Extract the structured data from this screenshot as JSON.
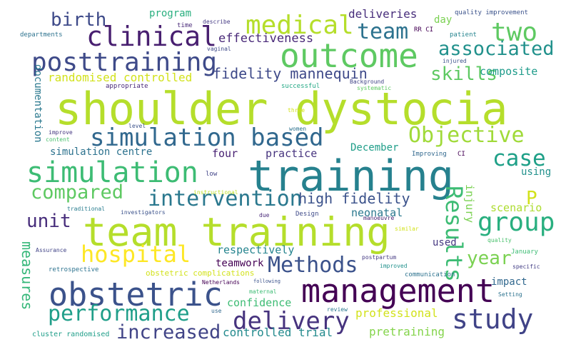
{
  "words": [
    {
      "text": "shoulder dystocia",
      "color": "#b5de2b"
    },
    {
      "text": "training",
      "color": "#26818e"
    },
    {
      "text": "team training",
      "color": "#b5de2b"
    },
    {
      "text": "outcome",
      "color": "#5ec962"
    },
    {
      "text": "management",
      "color": "#440154"
    },
    {
      "text": "obstetric",
      "color": "#3b528b"
    },
    {
      "text": "simulation",
      "color": "#3dbc74"
    },
    {
      "text": "clinical",
      "color": "#481f70"
    },
    {
      "text": "medical",
      "color": "#b5de2b"
    },
    {
      "text": "posttraining",
      "color": "#3e4a89"
    },
    {
      "text": "simulation based",
      "color": "#31688e"
    },
    {
      "text": "intervention",
      "color": "#2a788e"
    },
    {
      "text": "performance",
      "color": "#1f9e89"
    },
    {
      "text": "delivery",
      "color": "#46337e"
    },
    {
      "text": "study",
      "color": "#404387"
    },
    {
      "text": "hospital",
      "color": "#fde725"
    },
    {
      "text": "Methods",
      "color": "#3b528b"
    },
    {
      "text": "Objective",
      "color": "#a0da39"
    },
    {
      "text": "compared",
      "color": "#5ec962"
    },
    {
      "text": "team",
      "color": "#2c728e"
    },
    {
      "text": "two",
      "color": "#5ec962"
    },
    {
      "text": "associated",
      "color": "#21918c"
    },
    {
      "text": "group",
      "color": "#29af7f"
    },
    {
      "text": "increased",
      "color": "#414487"
    },
    {
      "text": "Results",
      "color": "#3dbc74"
    },
    {
      "text": "case",
      "color": "#1fa088"
    },
    {
      "text": "birth",
      "color": "#3e4a89"
    },
    {
      "text": "skills",
      "color": "#5ec962"
    },
    {
      "text": "unit",
      "color": "#472d7b"
    },
    {
      "text": "measures",
      "color": "#35b779"
    },
    {
      "text": "year",
      "color": "#7ad151"
    },
    {
      "text": "fidelity mannequin",
      "color": "#3e4989"
    },
    {
      "text": "high fidelity",
      "color": "#3b528b"
    },
    {
      "text": "effectiveness",
      "color": "#482878"
    },
    {
      "text": "P",
      "color": "#d2e21b"
    },
    {
      "text": "randomised controlled",
      "color": "#d2e21b"
    },
    {
      "text": "deliveries",
      "color": "#472d7b"
    },
    {
      "text": "composite",
      "color": "#1e9b8a"
    },
    {
      "text": "respectively",
      "color": "#25848e"
    },
    {
      "text": "controlled trial",
      "color": "#238a8d"
    },
    {
      "text": "pretraining",
      "color": "#84d44b"
    },
    {
      "text": "confidence",
      "color": "#3dbc74"
    },
    {
      "text": "professional",
      "color": "#d2e21b"
    },
    {
      "text": "teamwork",
      "color": "#440154"
    },
    {
      "text": "neonatal",
      "color": "#2a788e"
    },
    {
      "text": "scenario",
      "color": "#addc30"
    },
    {
      "text": "injury",
      "color": "#7ad151"
    },
    {
      "text": "practice",
      "color": "#46337e"
    },
    {
      "text": "December",
      "color": "#1f9e89"
    },
    {
      "text": "simulation centre",
      "color": "#2c728e"
    },
    {
      "text": "four",
      "color": "#482173"
    },
    {
      "text": "documentation",
      "color": "#2a788e"
    },
    {
      "text": "program",
      "color": "#29af7f"
    },
    {
      "text": "day",
      "color": "#7ad151"
    },
    {
      "text": "used",
      "color": "#453781"
    },
    {
      "text": "impact",
      "color": "#31688e"
    },
    {
      "text": "using",
      "color": "#21918c"
    },
    {
      "text": "obstetric complications",
      "color": "#d2e21b"
    },
    {
      "text": "cluster randomised",
      "color": "#1f9e89"
    },
    {
      "text": "quality improvement",
      "color": "#3b528b"
    },
    {
      "text": "RR CI",
      "color": "#440154"
    },
    {
      "text": "patient",
      "color": "#25848e"
    },
    {
      "text": "injured",
      "color": "#3b528b"
    },
    {
      "text": "time",
      "color": "#482878"
    },
    {
      "text": "describe",
      "color": "#443983"
    },
    {
      "text": "departments",
      "color": "#2c728e"
    },
    {
      "text": "vaginal",
      "color": "#3e4989"
    },
    {
      "text": "appropriate",
      "color": "#482878"
    },
    {
      "text": "successful",
      "color": "#22a884"
    },
    {
      "text": "Background",
      "color": "#414487"
    },
    {
      "text": "systematic",
      "color": "#5ec962"
    },
    {
      "text": "three",
      "color": "#d2e21b"
    },
    {
      "text": "level",
      "color": "#3b528b"
    },
    {
      "text": "women",
      "color": "#2c728e"
    },
    {
      "text": "content",
      "color": "#4ac16d"
    },
    {
      "text": "improve",
      "color": "#453781"
    },
    {
      "text": "Improving",
      "color": "#31688e"
    },
    {
      "text": "CI",
      "color": "#440154"
    },
    {
      "text": "low",
      "color": "#404387"
    },
    {
      "text": "instructional",
      "color": "#bddf26"
    },
    {
      "text": "traditional",
      "color": "#287c8e"
    },
    {
      "text": "investigators",
      "color": "#3b528b"
    },
    {
      "text": "due",
      "color": "#482878"
    },
    {
      "text": "Design",
      "color": "#3e4a89"
    },
    {
      "text": "manoeuvre",
      "color": "#482173"
    },
    {
      "text": "similar",
      "color": "#d2e21b"
    },
    {
      "text": "quality",
      "color": "#4ac16d"
    },
    {
      "text": "Assurance",
      "color": "#414487"
    },
    {
      "text": "January",
      "color": "#3dbc74"
    },
    {
      "text": "retrospective",
      "color": "#2c728e"
    },
    {
      "text": "improved",
      "color": "#21918c"
    },
    {
      "text": "specific",
      "color": "#433e85"
    },
    {
      "text": "postpartum",
      "color": "#443983"
    },
    {
      "text": "communication",
      "color": "#2c728e"
    },
    {
      "text": "Netherlands",
      "color": "#440154"
    },
    {
      "text": "following",
      "color": "#3b528b"
    },
    {
      "text": "maternal",
      "color": "#3dbc74"
    },
    {
      "text": "Setting",
      "color": "#2c728e"
    },
    {
      "text": "use",
      "color": "#31688e"
    },
    {
      "text": "review",
      "color": "#2a788e"
    }
  ]
}
